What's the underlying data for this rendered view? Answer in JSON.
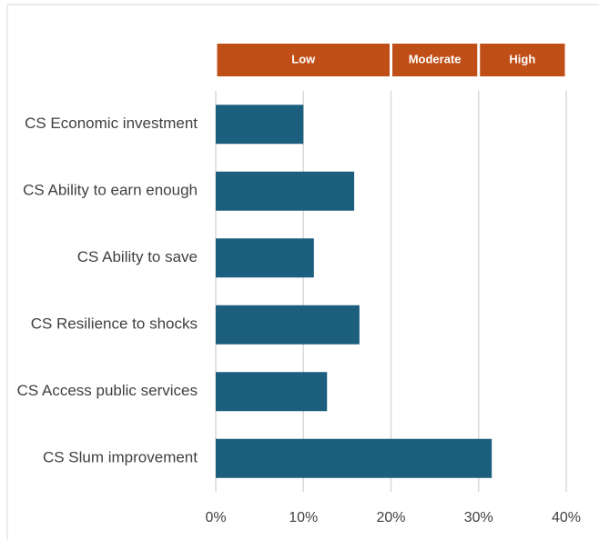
{
  "chart_data": {
    "type": "hbar",
    "categories": [
      "CS Economic investment",
      "CS Ability to earn enough",
      "CS Ability to save",
      "CS Resilience to shocks",
      "CS Access public services",
      "CS Slum improvement"
    ],
    "values": [
      10,
      15.8,
      11.2,
      16.4,
      12.7,
      31.5
    ],
    "color": "#1b5e7e",
    "xlim": [
      0,
      40
    ],
    "xticks": [
      {
        "value": 0,
        "label": "0%"
      },
      {
        "value": 10,
        "label": "10%"
      },
      {
        "value": 20,
        "label": "20%"
      },
      {
        "value": 30,
        "label": "30%"
      },
      {
        "value": 40,
        "label": "40%"
      }
    ],
    "grid": true,
    "bands": [
      {
        "label": "Low",
        "from": 0,
        "to": 20
      },
      {
        "label": "Moderate",
        "from": 20,
        "to": 30
      },
      {
        "label": "High",
        "from": 30,
        "to": 40
      }
    ],
    "band_color": "#c04e17"
  }
}
